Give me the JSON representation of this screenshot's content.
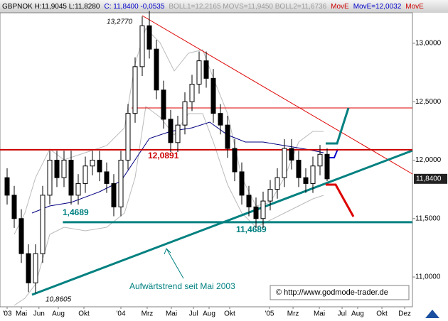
{
  "chart_data": {
    "type": "candlestick",
    "header": [
      {
        "text": "GBPNOK H:11,9045 L:11,8280",
        "color": "#000000"
      },
      {
        "text": "C: 11,8400 -0,0535",
        "color": "#0000cc"
      },
      {
        "text": "BOLL1=12,2165 MOVS=11,9450 BOLL2=11,6736",
        "color": "#9a9a9a"
      },
      {
        "text": "MovE",
        "color": "#cc0000"
      },
      {
        "text": "MovE=12,0032",
        "color": "#0000cc"
      },
      {
        "text": "MovE",
        "color": "#cc0000"
      }
    ],
    "x": [
      0,
      0.625,
      1.25,
      1.875,
      2.5,
      3.125,
      3.75,
      4.375,
      5,
      5.625,
      6.25,
      6.875,
      7.5,
      8.125,
      8.75,
      9.375,
      10,
      10.625,
      11.25,
      11.875,
      12.5,
      13.125,
      13.75,
      14.375,
      15,
      15.625,
      16.25,
      16.875,
      17.5,
      18.125,
      18.75,
      19.375,
      20,
      20.625,
      21.25,
      21.875,
      22.5,
      23.125,
      23.75,
      24.375,
      25,
      25.625,
      26.25,
      26.875,
      27.5,
      28.125
    ],
    "open": [
      11.85,
      11.7,
      11.5,
      11.2,
      10.95,
      11.2,
      11.7,
      12.0,
      11.85,
      12.0,
      11.7,
      11.8,
      11.95,
      12.0,
      11.9,
      11.8,
      11.6,
      12.0,
      12.4,
      12.8,
      13.15,
      12.95,
      12.6,
      12.35,
      12.15,
      12.3,
      12.5,
      12.65,
      12.85,
      12.7,
      12.4,
      12.3,
      12.1,
      11.9,
      11.7,
      11.6,
      11.5,
      11.65,
      11.75,
      11.85,
      12.1,
      12.0,
      11.85,
      11.8,
      11.95,
      12.05
    ],
    "high": [
      11.93,
      11.78,
      11.58,
      11.28,
      11.28,
      11.78,
      12.08,
      12.08,
      12.08,
      12.08,
      11.88,
      12.03,
      12.08,
      12.08,
      11.98,
      11.88,
      12.08,
      12.48,
      12.88,
      13.23,
      13.277,
      13.03,
      12.68,
      12.43,
      12.38,
      12.58,
      12.73,
      12.93,
      12.93,
      12.78,
      12.48,
      12.38,
      12.18,
      11.98,
      11.78,
      11.68,
      11.73,
      11.83,
      11.93,
      12.18,
      12.18,
      12.08,
      11.93,
      12.03,
      12.13,
      12.1
    ],
    "low": [
      11.62,
      11.42,
      11.12,
      10.87,
      10.8605,
      11.12,
      11.62,
      11.77,
      11.77,
      11.62,
      11.62,
      11.72,
      11.87,
      11.82,
      11.72,
      11.52,
      11.52,
      11.92,
      12.32,
      12.72,
      12.87,
      12.52,
      12.27,
      12.07,
      12.07,
      12.22,
      12.42,
      12.57,
      12.62,
      12.32,
      12.22,
      12.02,
      11.82,
      11.62,
      11.52,
      11.42,
      11.42,
      11.57,
      11.67,
      11.77,
      11.92,
      11.77,
      11.72,
      11.72,
      11.87,
      11.82
    ],
    "close": [
      11.7,
      11.5,
      11.2,
      10.95,
      11.2,
      11.7,
      12.0,
      11.85,
      12.0,
      11.7,
      11.8,
      11.95,
      12.0,
      11.9,
      11.8,
      11.6,
      12.0,
      12.4,
      12.8,
      13.15,
      12.95,
      12.6,
      12.35,
      12.15,
      12.3,
      12.5,
      12.65,
      12.85,
      12.7,
      12.4,
      12.3,
      12.1,
      11.9,
      11.7,
      11.6,
      11.5,
      11.65,
      11.75,
      11.85,
      12.1,
      12.0,
      11.85,
      11.8,
      11.95,
      12.05,
      11.84
    ],
    "xlim": [
      -0.625,
      35.625
    ],
    "xticks": [
      {
        "value": 0,
        "label": "'03"
      },
      {
        "value": 1.25,
        "label": "Mai"
      },
      {
        "value": 2.8,
        "label": "Jun"
      },
      {
        "value": 4.5,
        "label": "Aug"
      },
      {
        "value": 6.75,
        "label": "Okt"
      },
      {
        "value": 10,
        "label": "'04"
      },
      {
        "value": 12.31,
        "label": "Mrz"
      },
      {
        "value": 14.44,
        "label": "Mai"
      },
      {
        "value": 16.38,
        "label": "Jul"
      },
      {
        "value": 17.75,
        "label": "Aug"
      },
      {
        "value": 19.56,
        "label": "Okt"
      },
      {
        "value": 23.06,
        "label": "'05"
      },
      {
        "value": 25.13,
        "label": "Mrz"
      },
      {
        "value": 27.44,
        "label": "Mai"
      },
      {
        "value": 29.44,
        "label": "Jul"
      },
      {
        "value": 30.81,
        "label": "Aug"
      },
      {
        "value": 32.94,
        "label": "Okt"
      },
      {
        "value": 34.94,
        "label": "Dez"
      }
    ],
    "ylim": [
      10.745,
      13.261
    ],
    "yticks": [
      {
        "value": 11,
        "label": "11,0000"
      },
      {
        "value": 11.5,
        "label": "11,5000"
      },
      {
        "value": 12,
        "label": "12,0000"
      },
      {
        "value": 12.5,
        "label": "12,5000"
      },
      {
        "value": 13,
        "label": "13,0000"
      }
    ],
    "last": {
      "value": 11.84,
      "label": "11,8400"
    },
    "levels": [
      {
        "value": 12.0891,
        "label": "12,0891",
        "color": "#cc0000"
      },
      {
        "value": 11.4689,
        "label": "11,4689",
        "color": "#008080"
      }
    ],
    "annotations": [
      "13,2770",
      "10,8605",
      "1,4689",
      "Aufwärtstrend seit Mai 2003",
      "© http://www.godmode-trader.de"
    ]
  }
}
